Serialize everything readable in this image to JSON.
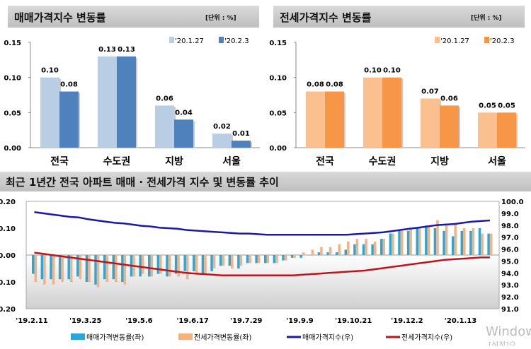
{
  "chart_data": [
    {
      "type": "bar",
      "title": "매매가격지수 변동률",
      "unit": "[단위 : %]",
      "categories": [
        "전국",
        "수도권",
        "지방",
        "서울"
      ],
      "series": [
        {
          "name": "'20.1.27",
          "values": [
            0.1,
            0.13,
            0.06,
            0.02
          ],
          "color": "#b9cde5"
        },
        {
          "name": "'20.2.3",
          "values": [
            0.08,
            0.13,
            0.04,
            0.01
          ],
          "color": "#4f81bd"
        }
      ],
      "ylim": [
        0,
        0.15
      ],
      "yticks": [
        "0.00",
        "0.05",
        "0.10",
        "0.15"
      ],
      "legend": "top-right"
    },
    {
      "type": "bar",
      "title": "전세가격지수 변동률",
      "unit": "[단위 : %]",
      "categories": [
        "전국",
        "수도권",
        "지방",
        "서울"
      ],
      "series": [
        {
          "name": "'20.1.27",
          "values": [
            0.08,
            0.1,
            0.07,
            0.05
          ],
          "color": "#fac090"
        },
        {
          "name": "'20.2.3",
          "values": [
            0.08,
            0.1,
            0.06,
            0.05
          ],
          "color": "#f79646"
        }
      ],
      "ylim": [
        0,
        0.15
      ],
      "yticks": [
        "0.00",
        "0.05",
        "0.10",
        "0.15"
      ],
      "legend": "top-right"
    },
    {
      "type": "bar+line",
      "title": "최근 1년간 전국 아파트 매매 · 전세가격 지수 및 변동률 추이",
      "xticks": [
        "'19.2.11",
        "'19.3.25",
        "'19.5.6",
        "'19.6.17",
        "'19.7.29",
        "'19.9.9",
        "'19.10.21",
        "'19.12.2",
        "'20.1.13"
      ],
      "ylim_left": [
        -0.2,
        0.2
      ],
      "yticks_left": [
        "-0.20",
        "-0.10",
        "0.00",
        "0.10",
        "0.20"
      ],
      "ylim_right": [
        91.0,
        100.0
      ],
      "yticks_right": [
        "91.0",
        "92.0",
        "93.0",
        "94.0",
        "95.0",
        "96.0",
        "97.0",
        "98.0",
        "99.0",
        "100.0"
      ],
      "legend": "bottom",
      "series": [
        {
          "name": "매매가격변동률(좌)",
          "type": "bar",
          "axis": "left",
          "color": "#2aa7d6",
          "values": [
            -0.07,
            -0.09,
            -0.09,
            -0.09,
            -0.09,
            -0.08,
            -0.1,
            -0.11,
            -0.09,
            -0.09,
            -0.1,
            -0.08,
            -0.08,
            -0.08,
            -0.07,
            -0.08,
            -0.07,
            -0.06,
            -0.06,
            -0.07,
            -0.06,
            -0.04,
            -0.04,
            -0.05,
            -0.03,
            -0.03,
            -0.03,
            -0.03,
            -0.02,
            -0.01,
            -0.01,
            0.0,
            0.01,
            0.01,
            0.01,
            0.02,
            0.04,
            0.04,
            0.04,
            0.06,
            0.08,
            0.09,
            0.09,
            0.1,
            0.11,
            0.1,
            0.09,
            0.07,
            0.09,
            0.09,
            0.1,
            0.08
          ]
        },
        {
          "name": "전세가격변동률(좌)",
          "type": "bar",
          "axis": "left",
          "color": "#f4b183",
          "values": [
            -0.1,
            -0.11,
            -0.11,
            -0.1,
            -0.1,
            -0.09,
            -0.1,
            -0.12,
            -0.1,
            -0.1,
            -0.11,
            -0.08,
            -0.07,
            -0.08,
            -0.07,
            -0.08,
            -0.08,
            -0.09,
            -0.07,
            -0.07,
            -0.05,
            -0.04,
            -0.05,
            -0.04,
            -0.03,
            -0.03,
            -0.03,
            -0.03,
            -0.02,
            -0.01,
            0.01,
            0.02,
            0.03,
            0.03,
            0.04,
            0.05,
            0.06,
            0.06,
            0.05,
            0.06,
            0.08,
            0.09,
            0.1,
            0.1,
            0.11,
            0.13,
            0.11,
            0.12,
            0.1,
            0.1,
            0.08,
            0.08
          ]
        },
        {
          "name": "매매가격지수(우)",
          "type": "line",
          "axis": "right",
          "color": "#1a1aa6",
          "values": [
            99.1,
            99.0,
            98.9,
            98.8,
            98.7,
            98.65,
            98.5,
            98.4,
            98.3,
            98.2,
            98.15,
            98.05,
            97.95,
            97.9,
            97.8,
            97.75,
            97.7,
            97.6,
            97.55,
            97.5,
            97.45,
            97.4,
            97.35,
            97.3,
            97.3,
            97.25,
            97.2,
            97.2,
            97.2,
            97.2,
            97.2,
            97.2,
            97.2,
            97.2,
            97.2,
            97.2,
            97.25,
            97.3,
            97.35,
            97.4,
            97.5,
            97.6,
            97.7,
            97.8,
            97.9,
            98.0,
            98.05,
            98.1,
            98.2,
            98.3,
            98.35,
            98.4
          ]
        },
        {
          "name": "전세가격지수(우)",
          "type": "line",
          "axis": "right",
          "color": "#c0141c",
          "values": [
            95.7,
            95.6,
            95.5,
            95.4,
            95.3,
            95.2,
            95.1,
            95.0,
            94.9,
            94.8,
            94.7,
            94.6,
            94.5,
            94.4,
            94.3,
            94.2,
            94.1,
            94.0,
            93.95,
            93.9,
            93.85,
            93.8,
            93.8,
            93.8,
            93.8,
            93.8,
            93.8,
            93.8,
            93.8,
            93.8,
            93.85,
            93.9,
            93.95,
            94.0,
            94.05,
            94.1,
            94.15,
            94.2,
            94.3,
            94.4,
            94.5,
            94.6,
            94.7,
            94.8,
            94.9,
            95.0,
            95.1,
            95.15,
            95.2,
            95.25,
            95.3,
            95.3
          ]
        }
      ]
    }
  ],
  "watermark": [
    "Window",
    "[설정]으"
  ]
}
